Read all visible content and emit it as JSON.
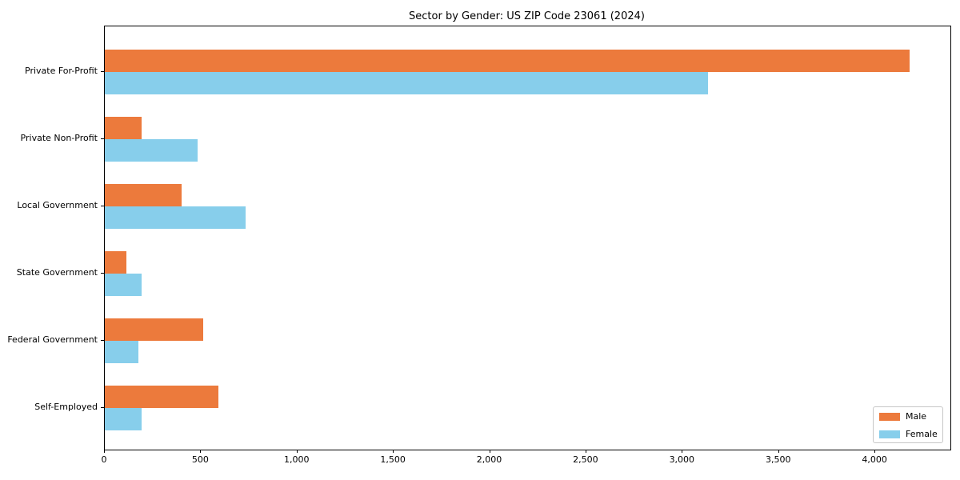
{
  "title": "Sector by Gender: US ZIP Code 23061 (2024)",
  "colors": {
    "male": "#EC7A3C",
    "female": "#87CEEB",
    "spine": "#000000",
    "legend_border": "#C7C7C7",
    "background": "#FFFFFF",
    "text": "#000000"
  },
  "legend": {
    "position": "lower right",
    "entries": [
      {
        "label": "Male",
        "color": "#EC7A3C"
      },
      {
        "label": "Female",
        "color": "#87CEEB"
      }
    ]
  },
  "chart_data": {
    "type": "bar",
    "orientation": "horizontal",
    "title": "Sector by Gender: US ZIP Code 23061 (2024)",
    "categories": [
      "Private For-Profit",
      "Private Non-Profit",
      "Local Government",
      "State Government",
      "Federal Government",
      "Self-Employed"
    ],
    "series": [
      {
        "name": "Male",
        "color": "#EC7A3C",
        "values": [
          4180,
          190,
          400,
          110,
          510,
          590
        ]
      },
      {
        "name": "Female",
        "color": "#87CEEB",
        "values": [
          3130,
          480,
          730,
          190,
          175,
          190
        ]
      }
    ],
    "xlabel": "",
    "ylabel": "",
    "xlim": [
      0,
      4390
    ],
    "xticks": [
      0,
      500,
      1000,
      1500,
      2000,
      2500,
      3000,
      3500,
      4000
    ],
    "xtick_labels": [
      "0",
      "500",
      "1,000",
      "1,500",
      "2,000",
      "2,500",
      "3,000",
      "3,500",
      "4,000"
    ],
    "grid": false,
    "legend_position": "lower right"
  }
}
